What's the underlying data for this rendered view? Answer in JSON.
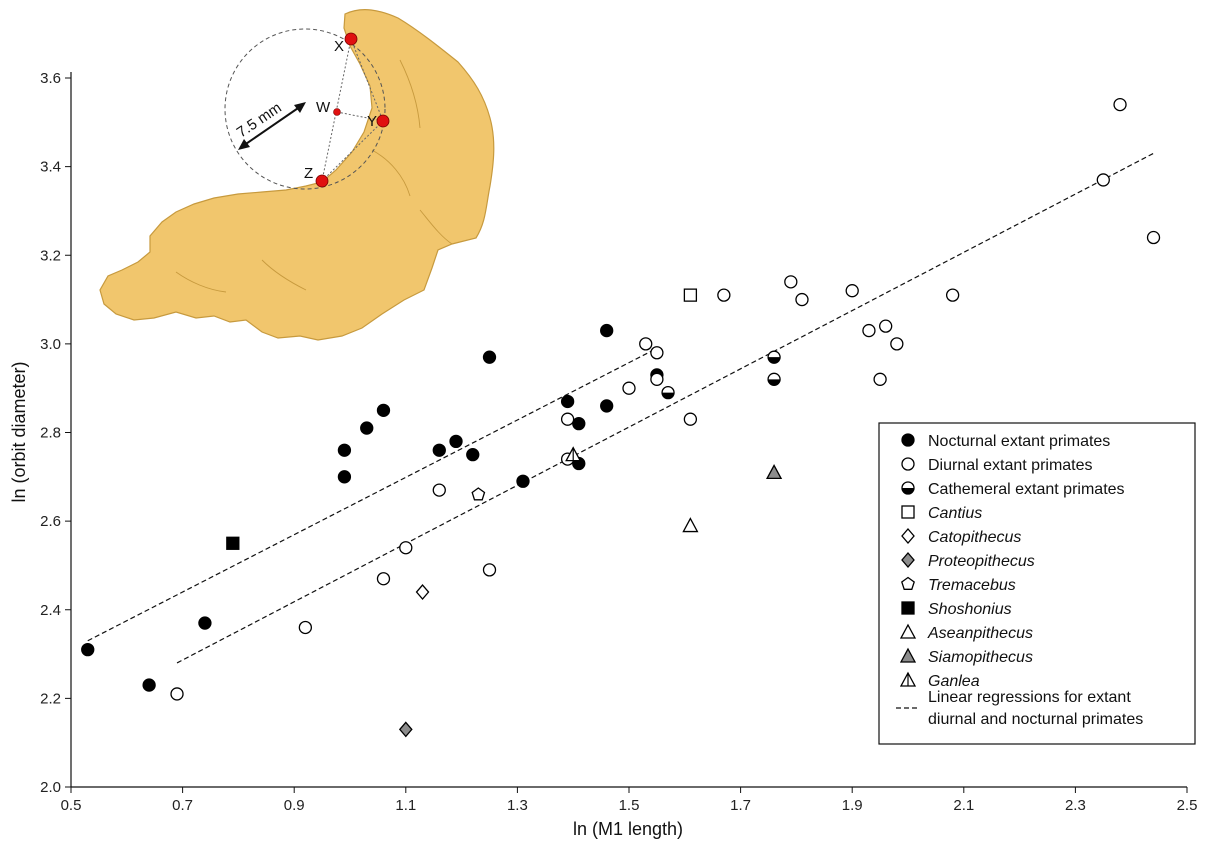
{
  "chart_data": {
    "type": "scatter",
    "xlabel": "ln (M1 length)",
    "ylabel": "ln (orbit diameter)",
    "xlim": [
      0.5,
      2.5
    ],
    "ylim": [
      2.0,
      3.6
    ],
    "x_ticks": [
      "0.5",
      "0.7",
      "0.9",
      "1.1",
      "1.3",
      "1.5",
      "1.7",
      "1.9",
      "2.1",
      "2.3",
      "2.5"
    ],
    "y_ticks": [
      "2.0",
      "2.2",
      "2.4",
      "2.6",
      "2.8",
      "3.0",
      "3.2",
      "3.4",
      "3.6"
    ],
    "grid": false,
    "legend_position": "bottom-right",
    "series": [
      {
        "name": "Nocturnal extant primates",
        "marker": "circle",
        "style": "filled",
        "color": "#000000",
        "points": [
          [
            0.53,
            2.31
          ],
          [
            0.64,
            2.23
          ],
          [
            0.74,
            2.37
          ],
          [
            0.99,
            2.7
          ],
          [
            0.99,
            2.76
          ],
          [
            1.03,
            2.81
          ],
          [
            1.06,
            2.85
          ],
          [
            1.16,
            2.76
          ],
          [
            1.19,
            2.78
          ],
          [
            1.22,
            2.75
          ],
          [
            1.25,
            2.97
          ],
          [
            1.31,
            2.69
          ],
          [
            1.39,
            2.87
          ],
          [
            1.41,
            2.82
          ],
          [
            1.41,
            2.73
          ],
          [
            1.46,
            2.86
          ],
          [
            1.46,
            3.03
          ],
          [
            1.55,
            2.93
          ]
        ]
      },
      {
        "name": "Diurnal extant primates",
        "marker": "circle",
        "style": "open",
        "color": "#000000",
        "points": [
          [
            0.69,
            2.21
          ],
          [
            0.92,
            2.36
          ],
          [
            1.06,
            2.47
          ],
          [
            1.1,
            2.54
          ],
          [
            1.16,
            2.67
          ],
          [
            1.25,
            2.49
          ],
          [
            1.39,
            2.83
          ],
          [
            1.39,
            2.74
          ],
          [
            1.5,
            2.9
          ],
          [
            1.53,
            3.0
          ],
          [
            1.55,
            2.98
          ],
          [
            1.55,
            2.92
          ],
          [
            1.61,
            2.83
          ],
          [
            1.67,
            3.11
          ],
          [
            1.79,
            3.14
          ],
          [
            1.81,
            3.1
          ],
          [
            1.9,
            3.12
          ],
          [
            1.93,
            3.03
          ],
          [
            1.95,
            2.92
          ],
          [
            1.96,
            3.04
          ],
          [
            1.98,
            3.0
          ],
          [
            2.08,
            3.11
          ],
          [
            2.35,
            3.37
          ],
          [
            2.38,
            3.54
          ],
          [
            2.44,
            3.24
          ]
        ]
      },
      {
        "name": "Cathemeral extant primates",
        "marker": "circle",
        "style": "half",
        "color": "#000000",
        "points": [
          [
            1.57,
            2.89
          ],
          [
            1.76,
            2.97
          ],
          [
            1.76,
            2.92
          ]
        ]
      },
      {
        "name": "Cantius",
        "marker": "square",
        "style": "open",
        "color": "#000000",
        "points": [
          [
            1.61,
            3.11
          ]
        ]
      },
      {
        "name": "Catopithecus",
        "marker": "diamond",
        "style": "open",
        "color": "#000000",
        "points": [
          [
            1.13,
            2.44
          ]
        ]
      },
      {
        "name": "Proteopithecus",
        "marker": "diamond",
        "style": "gray",
        "color": "#8c8c8c",
        "points": [
          [
            1.1,
            2.13
          ]
        ]
      },
      {
        "name": "Tremacebus",
        "marker": "pentagon",
        "style": "open",
        "color": "#000000",
        "points": [
          [
            1.23,
            2.66
          ]
        ]
      },
      {
        "name": "Shoshonius",
        "marker": "square",
        "style": "filled",
        "color": "#000000",
        "points": [
          [
            0.79,
            2.55
          ]
        ]
      },
      {
        "name": "Aseanpithecus",
        "marker": "triangle",
        "style": "open",
        "color": "#000000",
        "points": [
          [
            1.61,
            2.59
          ]
        ]
      },
      {
        "name": "Siamopithecus",
        "marker": "triangle",
        "style": "gray",
        "color": "#8c8c8c",
        "points": [
          [
            1.76,
            2.71
          ]
        ]
      },
      {
        "name": "Ganlea",
        "marker": "triangle",
        "style": "line",
        "color": "#000000",
        "points": [
          [
            1.4,
            2.75
          ]
        ]
      }
    ],
    "regression_lines": [
      {
        "name": "Linear regressions for extant diurnal and nocturnal primates",
        "x": [
          0.53,
          1.55
        ],
        "y": [
          2.33,
          2.99
        ]
      },
      {
        "name": "Linear regressions for extant diurnal and nocturnal primates",
        "x": [
          0.69,
          2.44
        ],
        "y": [
          2.28,
          3.43
        ]
      }
    ],
    "legend_line_label": [
      "Linear regressions for extant",
      "diurnal and nocturnal primates"
    ]
  },
  "inset": {
    "scale_label": "7.5 mm",
    "point_labels": [
      "X",
      "W",
      "Y",
      "Z"
    ]
  },
  "colors": {
    "fossil": "#f1c66d",
    "fossil_edge": "#c79a3e",
    "landmark": "#e01010",
    "gray_marker": "#8c8c8c"
  }
}
